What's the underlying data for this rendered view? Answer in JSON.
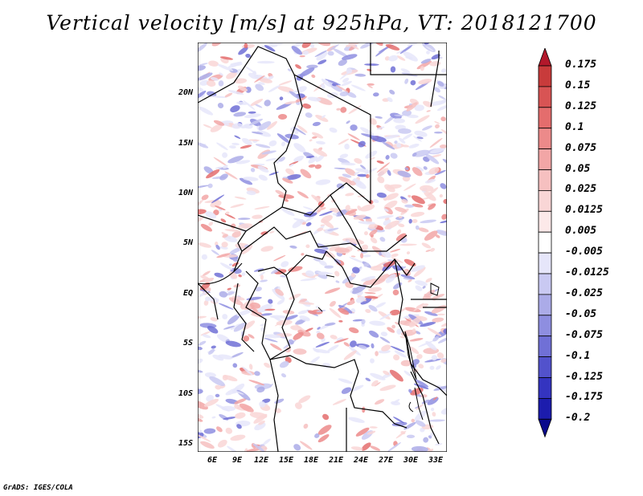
{
  "title": "Vertical velocity [m/s] at 925hPa, VT: 2018121700",
  "y_labels": [
    "20N",
    "15N",
    "10N",
    "5N",
    "EQ",
    "5S",
    "10S",
    "15S"
  ],
  "x_labels": [
    "6E",
    "9E",
    "12E",
    "15E",
    "18E",
    "21E",
    "24E",
    "27E",
    "30E",
    "33E"
  ],
  "colorbar": {
    "labels": [
      "0.175",
      "0.15",
      "0.125",
      "0.1",
      "0.075",
      "0.05",
      "0.025",
      "0.0125",
      "0.005",
      "-0.005",
      "-0.0125",
      "-0.025",
      "-0.05",
      "-0.075",
      "-0.1",
      "-0.125",
      "-0.175",
      "-0.2"
    ],
    "colors": [
      "#b2182b",
      "#c83b3b",
      "#d85454",
      "#e46d6d",
      "#ec8a8a",
      "#f2a6a6",
      "#f6c0c0",
      "#f9d6d6",
      "#fce9e9",
      "#ffffff",
      "#e6e6fa",
      "#c9c9f2",
      "#ababe8",
      "#8e8ee0",
      "#7070d6",
      "#5252cc",
      "#3434c0",
      "#1c1cad",
      "#0a0a8c"
    ]
  },
  "credit": "GrADS: IGES/COLA"
}
